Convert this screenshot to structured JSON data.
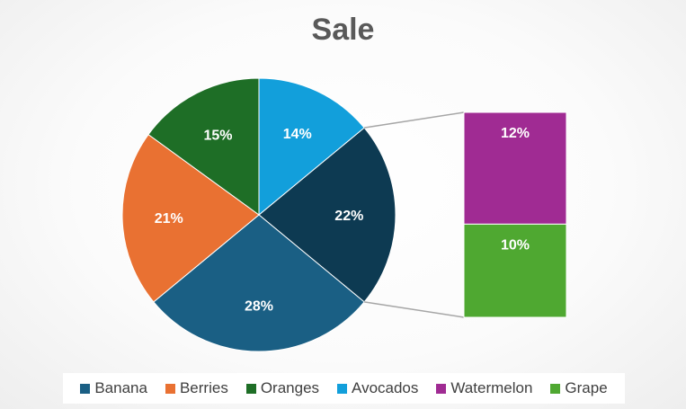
{
  "chart_data": {
    "type": "pie",
    "subtype": "bar-of-pie",
    "title": "Sale",
    "categories": [
      "Banana",
      "Berries",
      "Oranges",
      "Avocados",
      "Watermelon",
      "Grape"
    ],
    "values": [
      28,
      21,
      15,
      14,
      12,
      10
    ],
    "value_labels": [
      "28%",
      "21%",
      "15%",
      "14%",
      "12%",
      "10%"
    ],
    "colors": [
      "#1a5f84",
      "#e97132",
      "#1e6e26",
      "#129fdb",
      "#a02b93",
      "#4fa831"
    ],
    "pie_categories": [
      "Banana",
      "Berries",
      "Oranges",
      "Avocados"
    ],
    "secondary_bar_categories": [
      "Watermelon",
      "Grape"
    ],
    "combined_slice": {
      "label": "22%",
      "value": 22,
      "color": "#0d3a52"
    },
    "legend_position": "bottom"
  }
}
